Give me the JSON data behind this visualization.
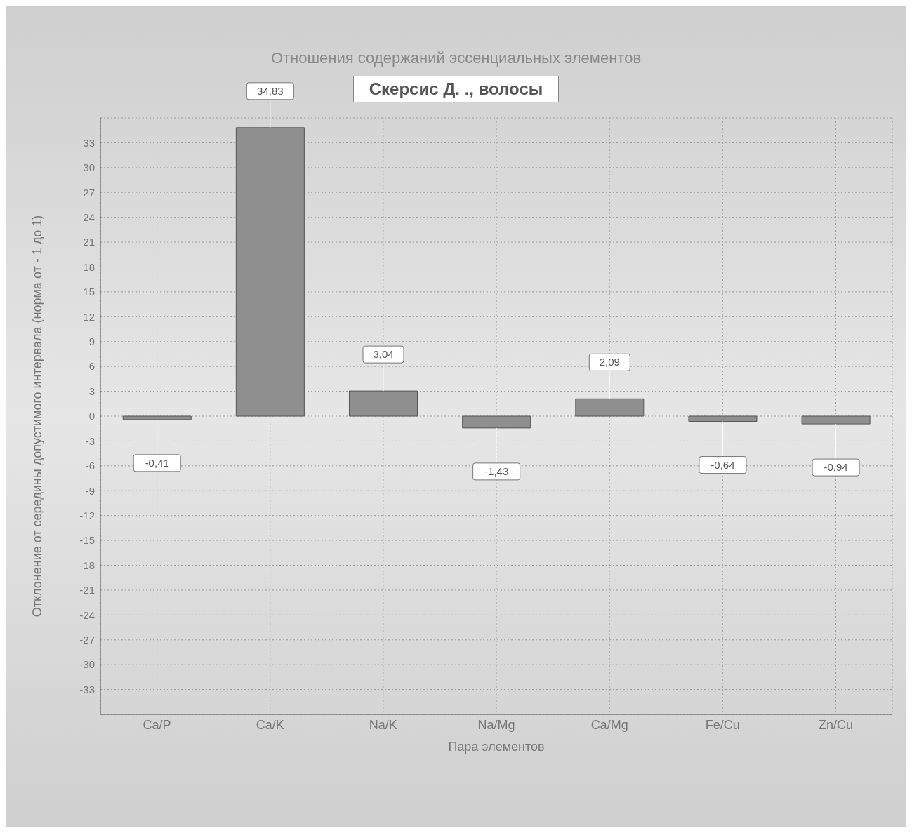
{
  "chart_data": {
    "type": "bar",
    "title": "Отношения содержаний эссенциальных элементов",
    "subtitle": "Скерсис Д. ., волосы",
    "xlabel": "Пара элементов",
    "ylabel": "Отклонение от середины допустимого интервала   (норма от - 1 до 1)",
    "categories": [
      "Ca/P",
      "Ca/K",
      "Na/K",
      "Na/Mg",
      "Ca/Mg",
      "Fe/Cu",
      "Zn/Cu"
    ],
    "values": [
      -0.41,
      34.83,
      3.04,
      -1.43,
      2.09,
      -0.64,
      -0.94
    ],
    "value_labels": [
      "-0,41",
      "34,83",
      "3,04",
      "-1,43",
      "2,09",
      "-0,64",
      "-0,94"
    ],
    "color": "#8f8f8f",
    "ylim": [
      -36,
      36
    ],
    "yticks": [
      -33,
      -30,
      -27,
      -24,
      -21,
      -18,
      -15,
      -12,
      -9,
      -6,
      -3,
      0,
      3,
      6,
      9,
      12,
      15,
      18,
      21,
      24,
      27,
      30,
      33
    ],
    "grid": true
  }
}
